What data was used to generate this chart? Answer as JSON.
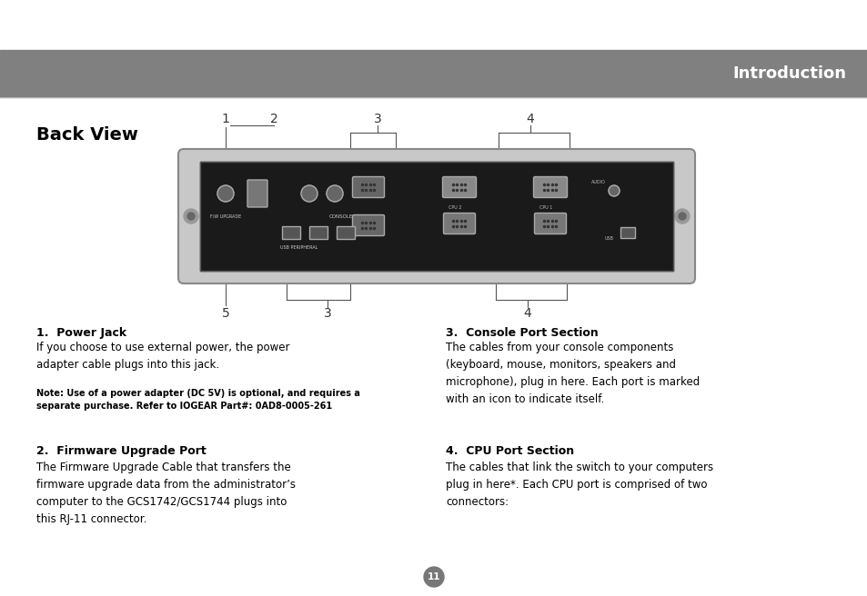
{
  "bg_color": "#ffffff",
  "header_bar_color": "#808080",
  "header_text": "Introduction",
  "header_text_color": "#ffffff",
  "back_view_title": "Back View",
  "section1_title": "1.  Power Jack",
  "section1_body": "If you choose to use external power, the power\nadapter cable plugs into this jack.",
  "section1_note": "Note: Use of a power adapter (DC 5V) is optional, and requires a\nseparate purchase. Refer to IOGEAR Part#: 0AD8-0005-261",
  "section2_title": "2.  Firmware Upgrade Port",
  "section2_body": "The Firmware Upgrade Cable that transfers the\nfirmware upgrade data from the administrator’s\ncomputer to the GCS1742/GCS1744 plugs into\nthis RJ-11 connector.",
  "section3_title": "3.  Console Port Section",
  "section3_body": "The cables from your console components\n(keyboard, mouse, monitors, speakers and\nmicrophone), plug in here. Each port is marked\nwith an icon to indicate itself.",
  "section4_title": "4.  CPU Port Section",
  "section4_body": "The cables that link the switch to your computers\nplug in here*. Each CPU port is comprised of two\nconnectors:",
  "page_number": "11",
  "device_color": "#1a1a1a",
  "device_border": "#555555"
}
